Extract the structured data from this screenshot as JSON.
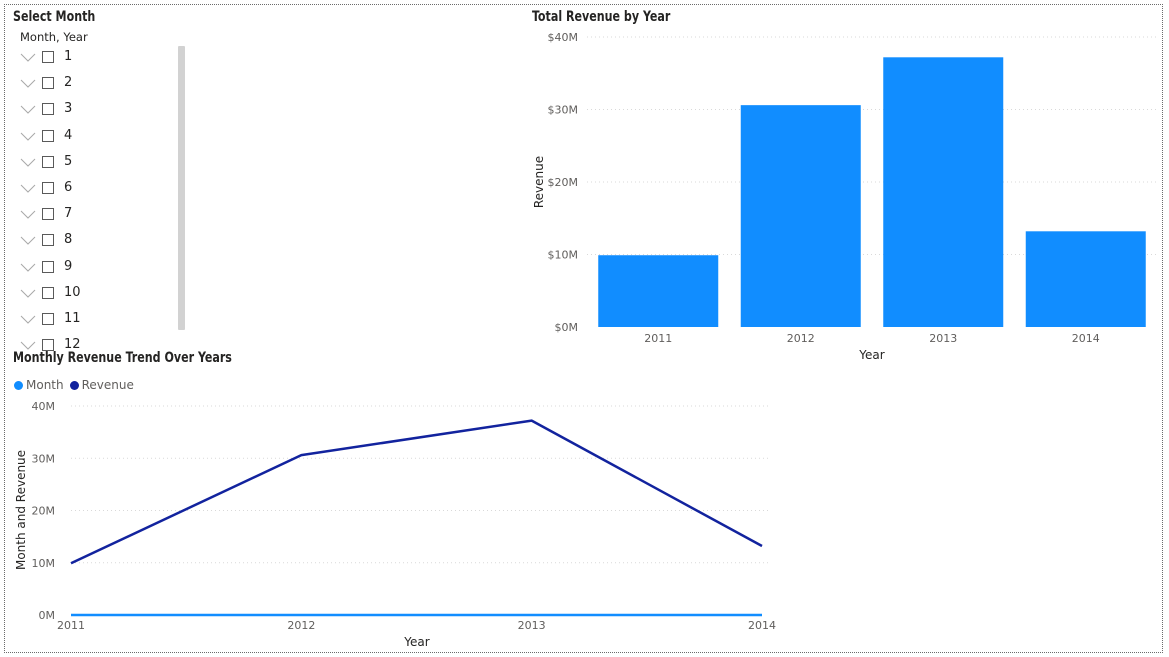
{
  "slicer": {
    "title": "Select Month",
    "header": "Month, Year",
    "items": [
      "1",
      "2",
      "3",
      "4",
      "5",
      "6",
      "7",
      "8",
      "9",
      "10",
      "11",
      "12"
    ]
  },
  "bar_chart": {
    "title": "Total Revenue by Year",
    "xlabel": "Year",
    "ylabel": "Revenue",
    "tick_labels": [
      "$0M",
      "$10M",
      "$20M",
      "$30M",
      "$40M"
    ],
    "bar_color": "#118DFF"
  },
  "line_chart": {
    "title": "Monthly Revenue Trend Over Years",
    "xlabel": "Year",
    "ylabel": "Month and Revenue",
    "tick_labels": [
      "0M",
      "10M",
      "20M",
      "30M",
      "40M"
    ],
    "legend": [
      {
        "name": "Month",
        "color": "#118DFF"
      },
      {
        "name": "Revenue",
        "color": "#12239E"
      }
    ]
  },
  "chart_data": [
    {
      "type": "bar",
      "title": "Total Revenue by Year",
      "categories": [
        "2011",
        "2012",
        "2013",
        "2014"
      ],
      "values": [
        9.9,
        30.6,
        37.2,
        13.2
      ],
      "unit": "M",
      "xlabel": "Year",
      "ylabel": "Revenue",
      "ylim": [
        0,
        40
      ],
      "yticks": [
        0,
        10,
        20,
        30,
        40
      ],
      "grid": true
    },
    {
      "type": "line",
      "title": "Monthly Revenue Trend Over Years",
      "x": [
        "2011",
        "2012",
        "2013",
        "2014"
      ],
      "series": [
        {
          "name": "Month",
          "values": [
            0.0,
            0.0,
            0.0,
            0.0
          ]
        },
        {
          "name": "Revenue",
          "values": [
            9.9,
            30.6,
            37.2,
            13.2
          ]
        }
      ],
      "unit": "M",
      "xlabel": "Year",
      "ylabel": "Month and Revenue",
      "ylim": [
        0,
        40
      ],
      "yticks": [
        0,
        10,
        20,
        30,
        40
      ],
      "legend": "top-left",
      "grid": true
    }
  ]
}
